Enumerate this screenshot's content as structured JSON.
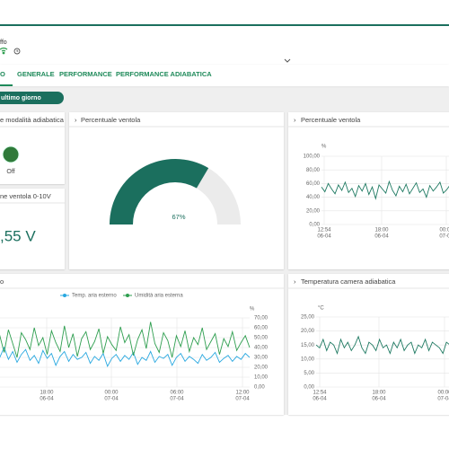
{
  "header": {
    "title": "ffo"
  },
  "tabs": [
    "O",
    "GENERALE",
    "PERFORMANCE",
    "PERFORMANCE ADIABATICA"
  ],
  "period_button": "ultimo giorno",
  "panels": {
    "adiabatic_mode": {
      "title": "e modalità adiabatica",
      "status": "Off"
    },
    "fan_voltage": {
      "title": "ne ventola 0-10V",
      "value": ",55 V"
    },
    "fan_gauge": {
      "title": "Percentuale ventola",
      "value": 67,
      "label": "67%",
      "range": [
        0,
        100
      ],
      "color": "#1b6f5e"
    },
    "fan_chart": {
      "title": "Percentuale ventola",
      "unit": "%",
      "ylim": [
        0,
        100
      ],
      "yticks": [
        {
          "value": 100,
          "label": "100,00"
        },
        {
          "value": 80,
          "label": "80,00"
        },
        {
          "value": 60,
          "label": "60,00"
        },
        {
          "value": 40,
          "label": "40,00"
        },
        {
          "value": 20,
          "label": "20,00"
        },
        {
          "value": 0,
          "label": "0,00"
        }
      ],
      "xlabels": [
        [
          "12:54",
          "06-04"
        ],
        [
          "18:00",
          "06-04"
        ],
        [
          "00:00",
          "07-04"
        ]
      ],
      "color": "#1f7a62",
      "values": [
        55,
        48,
        60,
        52,
        45,
        58,
        50,
        62,
        47,
        53,
        41,
        57,
        49,
        60,
        44,
        55,
        38,
        58,
        52,
        46,
        63,
        50,
        42,
        56,
        48,
        59,
        45,
        53,
        61,
        47,
        52,
        40,
        57,
        49,
        55,
        62,
        46,
        51,
        58,
        50
      ]
    },
    "outdoor_chart": {
      "title": "o",
      "unit": "%",
      "ylim": [
        0,
        70
      ],
      "yticks": [
        {
          "value": 70,
          "label": "70,00"
        },
        {
          "value": 60,
          "label": "60,00"
        },
        {
          "value": 50,
          "label": "50,00"
        },
        {
          "value": 40,
          "label": "40,00"
        },
        {
          "value": 30,
          "label": "30,00"
        },
        {
          "value": 20,
          "label": "20,00"
        },
        {
          "value": 10,
          "label": "10,00"
        },
        {
          "value": 0,
          "label": "0,00"
        }
      ],
      "xlabels": [
        [
          "18:00",
          "06-04"
        ],
        [
          "00:00",
          "07-04"
        ],
        [
          "06:00",
          "07-04"
        ],
        [
          "12:00",
          "07-04"
        ]
      ],
      "series": [
        {
          "name": "Temp. aria esterno",
          "color": "#29a8e0",
          "values": [
            35,
            30,
            40,
            28,
            36,
            25,
            33,
            38,
            27,
            32,
            24,
            37,
            29,
            34,
            22,
            31,
            36,
            26,
            33,
            28,
            30,
            35,
            24,
            31,
            27,
            34,
            21,
            29,
            33,
            26,
            32,
            28,
            35,
            23,
            30,
            27,
            36,
            25,
            31,
            29,
            33,
            22,
            30,
            34,
            26,
            31,
            28,
            24,
            33,
            27,
            30,
            35,
            25,
            29,
            32,
            26,
            31,
            28,
            34,
            30
          ]
        },
        {
          "name": "Umidità aria esterna",
          "color": "#2e9e4f",
          "values": [
            40,
            52,
            35,
            58,
            44,
            30,
            55,
            48,
            38,
            60,
            42,
            50,
            33,
            57,
            45,
            36,
            62,
            40,
            54,
            31,
            49,
            56,
            38,
            46,
            59,
            34,
            51,
            43,
            37,
            61,
            45,
            53,
            32,
            48,
            58,
            39,
            66,
            44,
            35,
            55,
            47,
            30,
            52,
            41,
            57,
            36,
            50,
            43,
            60,
            38,
            46,
            54,
            33,
            49,
            41,
            56,
            37,
            45,
            52,
            40
          ]
        }
      ]
    },
    "chamber_chart": {
      "title": "Temperatura camera adiabatica",
      "unit": "°C",
      "ylim": [
        0,
        25
      ],
      "yticks": [
        {
          "value": 25,
          "label": "25,00"
        },
        {
          "value": 20,
          "label": "20,00"
        },
        {
          "value": 15,
          "label": "15,00"
        },
        {
          "value": 10,
          "label": "10,00"
        },
        {
          "value": 5,
          "label": "5,00"
        },
        {
          "value": 0,
          "label": "0,00"
        }
      ],
      "xlabels": [
        [
          "12:54",
          "06-04"
        ],
        [
          "18:00",
          "06-04"
        ],
        [
          "00:00",
          "07-04"
        ]
      ],
      "color": "#1f7a62",
      "values": [
        15,
        14,
        17,
        13,
        16,
        15,
        12,
        17,
        14,
        16,
        13,
        15,
        18,
        14,
        12,
        16,
        15,
        13,
        17,
        14,
        15,
        12,
        16,
        14,
        17,
        13,
        15,
        16,
        12,
        15,
        14,
        17,
        13,
        16,
        15,
        14,
        12,
        16,
        15,
        14
      ]
    }
  }
}
